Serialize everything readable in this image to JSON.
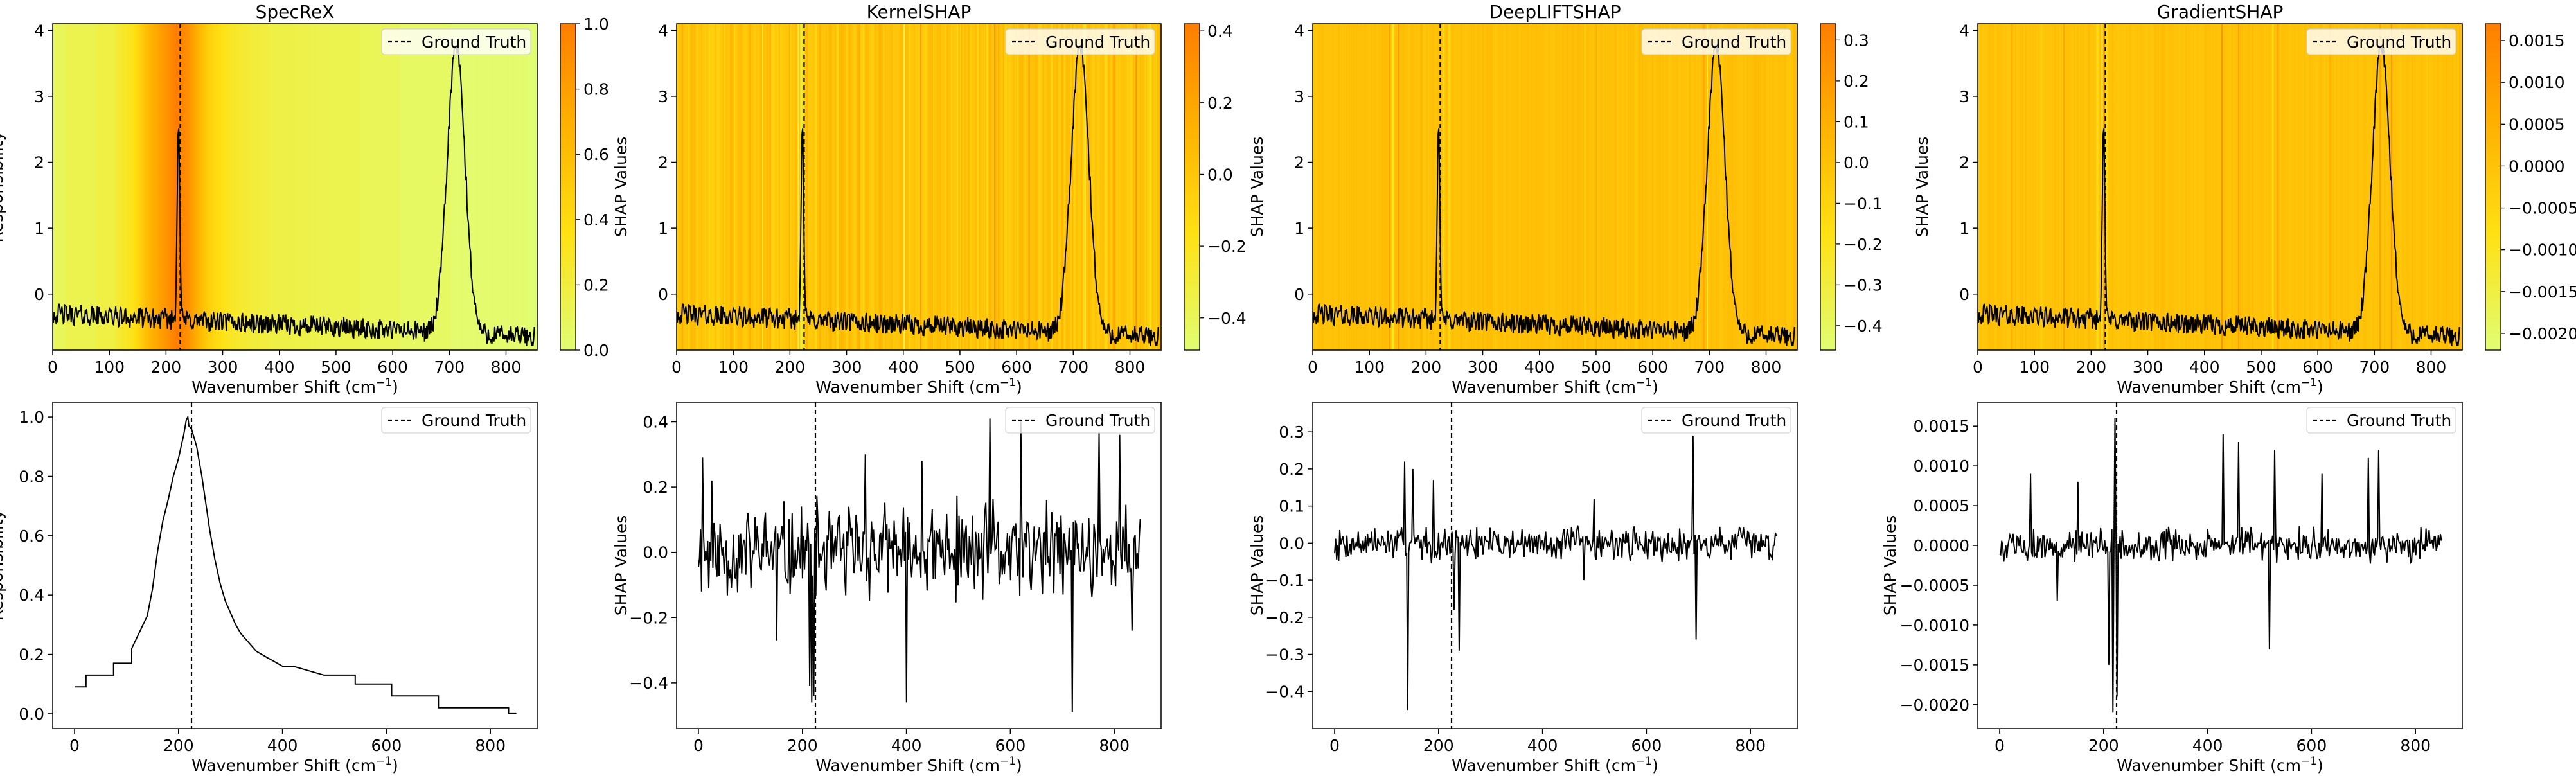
{
  "figure": {
    "axis_label_superscript": "−1"
  },
  "chart_data": [
    {
      "id": "specrex-heatmap",
      "type": "heatmap",
      "title": "SpecReX",
      "xlabel": "Wavenumber Shift (cm",
      "ylabel": "Responsibility",
      "xlim": [
        0,
        855
      ],
      "ylim": [
        -0.85,
        4.1
      ],
      "xticks": [
        0,
        100,
        200,
        300,
        400,
        500,
        600,
        700,
        800
      ],
      "yticks": [
        0,
        1,
        2,
        3,
        4
      ],
      "legend": "Ground Truth",
      "ground_truth_x": 225,
      "colorbar": {
        "min": 0,
        "max": 1,
        "ticks": [
          0,
          0.2,
          0.4,
          0.6,
          0.8,
          1.0
        ],
        "tick_labels": [
          "0.0",
          "0.2",
          "0.4",
          "0.6",
          "0.8",
          "1.0"
        ]
      },
      "heat_source": "specrex-line"
    },
    {
      "id": "kernelshap-heatmap",
      "type": "heatmap",
      "title": "KernelSHAP",
      "xlabel": "Wavenumber Shift (cm",
      "ylabel": "SHAP Values",
      "xlim": [
        0,
        855
      ],
      "ylim": [
        -0.85,
        4.1
      ],
      "xticks": [
        0,
        100,
        200,
        300,
        400,
        500,
        600,
        700,
        800
      ],
      "yticks": [
        0,
        1,
        2,
        3,
        4
      ],
      "legend": "Ground Truth",
      "ground_truth_x": 225,
      "colorbar": {
        "min": -0.49,
        "max": 0.42,
        "ticks": [
          -0.4,
          -0.2,
          0.0,
          0.2,
          0.4
        ],
        "tick_labels": [
          "−0.4",
          "−0.2",
          "0.0",
          "0.2",
          "0.4"
        ]
      },
      "heat_source": "kernelshap-line"
    },
    {
      "id": "deepliftshap-heatmap",
      "type": "heatmap",
      "title": "DeepLIFTSHAP",
      "xlabel": "Wavenumber Shift (cm",
      "ylabel": "SHAP Values",
      "xlim": [
        0,
        855
      ],
      "ylim": [
        -0.85,
        4.1
      ],
      "xticks": [
        0,
        100,
        200,
        300,
        400,
        500,
        600,
        700,
        800
      ],
      "yticks": [
        0,
        1,
        2,
        3,
        4
      ],
      "legend": "Ground Truth",
      "ground_truth_x": 225,
      "colorbar": {
        "min": -0.46,
        "max": 0.34,
        "ticks": [
          -0.4,
          -0.3,
          -0.2,
          -0.1,
          0.0,
          0.1,
          0.2,
          0.3
        ],
        "tick_labels": [
          "−0.4",
          "−0.3",
          "−0.2",
          "−0.1",
          "0.0",
          "0.1",
          "0.2",
          "0.3"
        ]
      },
      "heat_source": "deepliftshap-line"
    },
    {
      "id": "gradientshap-heatmap",
      "type": "heatmap",
      "title": "GradientSHAP",
      "xlabel": "Wavenumber Shift (cm",
      "ylabel": "SHAP Values",
      "xlim": [
        0,
        855
      ],
      "ylim": [
        -0.85,
        4.1
      ],
      "xticks": [
        0,
        100,
        200,
        300,
        400,
        500,
        600,
        700,
        800
      ],
      "yticks": [
        0,
        1,
        2,
        3,
        4
      ],
      "legend": "Ground Truth",
      "ground_truth_x": 225,
      "colorbar": {
        "min": -0.0022,
        "max": 0.0017,
        "ticks": [
          -0.002,
          -0.0015,
          -0.001,
          -0.0005,
          0.0,
          0.0005,
          0.001,
          0.0015
        ],
        "tick_labels": [
          "−0.0020",
          "−0.0015",
          "−0.0010",
          "−0.0005",
          "0.0000",
          "0.0005",
          "0.0010",
          "0.0015"
        ]
      },
      "heat_source": "gradientshap-line"
    },
    {
      "id": "specrex-line",
      "type": "line",
      "xlabel": "Wavenumber Shift (cm",
      "ylabel": "Responsibility",
      "xlim": [
        -42,
        890
      ],
      "ylim": [
        -0.05,
        1.05
      ],
      "xticks": [
        0,
        200,
        400,
        600,
        800
      ],
      "yticks": [
        0,
        0.2,
        0.4,
        0.6,
        0.8,
        1.0
      ],
      "ytick_labels": [
        "0.0",
        "0.2",
        "0.4",
        "0.6",
        "0.8",
        "1.0"
      ],
      "legend": "Ground Truth",
      "ground_truth_x": 225,
      "x": [
        0,
        22,
        22,
        75,
        75,
        110,
        110,
        140,
        150,
        160,
        170,
        180,
        190,
        200,
        205,
        210,
        215,
        218,
        220,
        225,
        230,
        235,
        240,
        245,
        250,
        255,
        260,
        265,
        270,
        275,
        280,
        290,
        300,
        310,
        320,
        330,
        340,
        350,
        360,
        370,
        380,
        390,
        400,
        420,
        440,
        460,
        480,
        500,
        540,
        540,
        610,
        610,
        700,
        700,
        835,
        835,
        850
      ],
      "y": [
        0.09,
        0.09,
        0.13,
        0.13,
        0.17,
        0.17,
        0.22,
        0.33,
        0.42,
        0.55,
        0.65,
        0.72,
        0.8,
        0.86,
        0.9,
        0.94,
        0.99,
        1.0,
        0.97,
        0.96,
        0.93,
        0.9,
        0.85,
        0.8,
        0.74,
        0.68,
        0.62,
        0.57,
        0.52,
        0.48,
        0.44,
        0.38,
        0.34,
        0.3,
        0.27,
        0.25,
        0.23,
        0.21,
        0.2,
        0.19,
        0.18,
        0.17,
        0.16,
        0.16,
        0.15,
        0.14,
        0.13,
        0.13,
        0.13,
        0.1,
        0.1,
        0.06,
        0.06,
        0.02,
        0.02,
        0.0,
        0.0
      ]
    },
    {
      "id": "kernelshap-line",
      "type": "line",
      "xlabel": "Wavenumber Shift (cm",
      "ylabel": "SHAP Values",
      "xlim": [
        -42,
        890
      ],
      "ylim": [
        -0.54,
        0.46
      ],
      "xticks": [
        0,
        200,
        400,
        600,
        800
      ],
      "yticks": [
        -0.4,
        -0.2,
        0.0,
        0.2,
        0.4
      ],
      "ytick_labels": [
        "−0.4",
        "−0.2",
        "0.0",
        "0.2",
        "0.4"
      ],
      "legend": "Ground Truth",
      "ground_truth_x": 225,
      "noise": {
        "points": 430,
        "amplitude": 0.13,
        "seed": 11
      },
      "spikes": [
        [
          8,
          0.29
        ],
        [
          25,
          0.22
        ],
        [
          150,
          -0.27
        ],
        [
          214,
          -0.41
        ],
        [
          218,
          -0.46
        ],
        [
          222,
          -0.44
        ],
        [
          320,
          0.3
        ],
        [
          400,
          -0.46
        ],
        [
          430,
          0.28
        ],
        [
          560,
          0.41
        ],
        [
          620,
          0.4
        ],
        [
          720,
          -0.49
        ],
        [
          770,
          0.37
        ],
        [
          810,
          0.36
        ],
        [
          835,
          -0.24
        ]
      ]
    },
    {
      "id": "deepliftshap-line",
      "type": "line",
      "xlabel": "Wavenumber Shift (cm",
      "ylabel": "SHAP Values",
      "xlim": [
        -42,
        890
      ],
      "ylim": [
        -0.5,
        0.38
      ],
      "xticks": [
        0,
        200,
        400,
        600,
        800
      ],
      "yticks": [
        -0.4,
        -0.3,
        -0.2,
        -0.1,
        0.0,
        0.1,
        0.2,
        0.3
      ],
      "ytick_labels": [
        "−0.4",
        "−0.3",
        "−0.2",
        "−0.1",
        "0.0",
        "0.1",
        "0.2",
        "0.3"
      ],
      "legend": "Ground Truth",
      "ground_truth_x": 225,
      "noise": {
        "points": 430,
        "amplitude": 0.04,
        "seed": 7
      },
      "spikes": [
        [
          135,
          0.22
        ],
        [
          140,
          -0.45
        ],
        [
          150,
          0.2
        ],
        [
          190,
          0.17
        ],
        [
          230,
          -0.18
        ],
        [
          240,
          -0.29
        ],
        [
          480,
          -0.1
        ],
        [
          500,
          0.12
        ],
        [
          690,
          0.29
        ],
        [
          695,
          -0.26
        ]
      ]
    },
    {
      "id": "gradientshap-line",
      "type": "line",
      "xlabel": "Wavenumber Shift (cm",
      "ylabel": "SHAP Values",
      "xlim": [
        -42,
        890
      ],
      "ylim": [
        -0.0023,
        0.0018
      ],
      "xticks": [
        0,
        200,
        400,
        600,
        800
      ],
      "yticks": [
        -0.002,
        -0.0015,
        -0.001,
        -0.0005,
        0.0,
        0.0005,
        0.001,
        0.0015
      ],
      "ytick_labels": [
        "−0.0020",
        "−0.0015",
        "−0.0010",
        "−0.0005",
        "0.0000",
        "0.0005",
        "0.0010",
        "0.0015"
      ],
      "legend": "Ground Truth",
      "ground_truth_x": 225,
      "noise": {
        "points": 430,
        "amplitude": 0.00018,
        "seed": 5
      },
      "spikes": [
        [
          60,
          0.0009
        ],
        [
          110,
          -0.0007
        ],
        [
          150,
          0.0008
        ],
        [
          210,
          -0.0015
        ],
        [
          218,
          -0.0021
        ],
        [
          222,
          0.0016
        ],
        [
          226,
          -0.0019
        ],
        [
          430,
          0.0014
        ],
        [
          460,
          0.0013
        ],
        [
          520,
          -0.0013
        ],
        [
          530,
          0.0012
        ],
        [
          620,
          0.0009
        ],
        [
          710,
          0.0011
        ],
        [
          730,
          0.0012
        ]
      ]
    }
  ]
}
